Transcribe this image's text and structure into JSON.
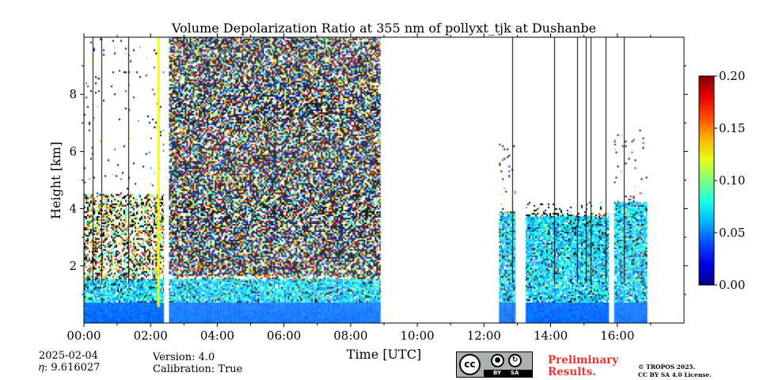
{
  "chart_data": {
    "type": "heatmap",
    "title": "Volume Depolarization Ratio at 355 nm of pollyxt_tjk at Dushanbe",
    "xlabel": "Time [UTC]",
    "ylabel": "Height [km]",
    "xlim": [
      0,
      18
    ],
    "ylim": [
      0,
      10
    ],
    "x_unit": "hours UTC",
    "x_ticks": [
      0,
      2,
      4,
      6,
      8,
      10,
      12,
      14,
      16
    ],
    "x_tick_labels": [
      "00:00",
      "02:00",
      "04:00",
      "06:00",
      "08:00",
      "10:00",
      "12:00",
      "14:00",
      "16:00"
    ],
    "y_ticks": [
      2,
      4,
      6,
      8
    ],
    "y_tick_labels": [
      "2",
      "4",
      "6",
      "8"
    ],
    "colorbar": {
      "min": 0.0,
      "max": 0.2,
      "ticks": [
        0.0,
        0.05,
        0.1,
        0.15,
        0.2
      ],
      "tick_labels": [
        "0.00",
        "0.05",
        "0.10",
        "0.15",
        "0.20"
      ],
      "colormap": "jet"
    },
    "grid": false,
    "data_segments": [
      {
        "start": 0.0,
        "end": 2.4,
        "layer_top_km": 1.5,
        "noise_top_km": 10,
        "noise_density": 0.02,
        "aerosol_top_km": 4.5
      },
      {
        "start": 2.55,
        "end": 8.9,
        "layer_top_km": 1.5,
        "noise_top_km": 10,
        "noise_density": 0.75,
        "aerosol_top_km": 1.6
      },
      {
        "start": 12.45,
        "end": 12.95,
        "layer_top_km": 3.8,
        "noise_top_km": 6.3,
        "noise_density": 0.05,
        "aerosol_top_km": 3.9
      },
      {
        "start": 13.25,
        "end": 15.75,
        "layer_top_km": 3.7,
        "noise_top_km": 4.2,
        "noise_density": 0.08,
        "aerosol_top_km": 3.8
      },
      {
        "start": 15.9,
        "end": 16.85,
        "layer_top_km": 4.2,
        "noise_top_km": 6.8,
        "noise_density": 0.05,
        "aerosol_top_km": 4.2
      }
    ],
    "yellow_streak_time": 2.2,
    "gaps": [
      [
        2.4,
        2.55
      ],
      [
        8.9,
        12.45
      ],
      [
        12.95,
        13.25
      ],
      [
        15.75,
        15.9
      ]
    ],
    "vertical_lines": [
      0.27,
      0.52,
      1.32,
      12.85,
      14.1,
      14.8,
      15.05,
      15.2,
      15.65,
      16.2
    ]
  },
  "info": {
    "date": "2025-02-04",
    "eta": "𝜂: 9.616027",
    "version": "Version: 4.0",
    "calibration": "Calibration: True"
  },
  "license": {
    "cc_label": "cc",
    "by": "BY",
    "sa": "SA",
    "preliminary_line1": "Preliminary",
    "preliminary_line2": "Results.",
    "copyright_line1": "© TROPOS 2025.",
    "copyright_line2": "CC BY SA 4.0 License."
  }
}
